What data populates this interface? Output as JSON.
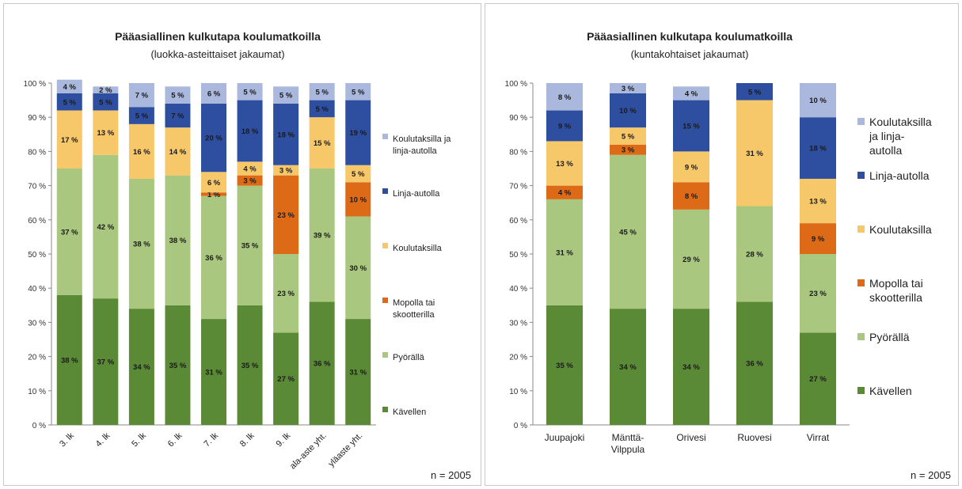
{
  "charts": [
    {
      "n_label": "n = 2005",
      "chart_data": {
        "type": "bar",
        "stacked": true,
        "title": "Pääasiallinen kulkutapa koulumatkoilla",
        "subtitle": "(luokka-asteittaiset jakaumat)",
        "xlabel": "",
        "ylabel": "",
        "ylim": [
          0,
          100
        ],
        "y_ticks": [
          "0 %",
          "10 %",
          "20 %",
          "30 %",
          "40 %",
          "50 %",
          "60 %",
          "70 %",
          "80 %",
          "90 %",
          "100 %"
        ],
        "grid": false,
        "legend_position": "right",
        "categories": [
          "3. lk",
          "4. lk",
          "5. lk",
          "6. lk",
          "7. lk",
          "8. lk",
          "9. lk",
          "ala-aste yht.",
          "yläaste yht."
        ],
        "series": [
          {
            "name": "Kävellen",
            "color": "#5b8a36",
            "values": [
              38,
              37,
              34,
              35,
              31,
              35,
              27,
              36,
              31
            ]
          },
          {
            "name": "Pyörällä",
            "color": "#a9c77e",
            "values": [
              37,
              42,
              38,
              38,
              36,
              35,
              23,
              39,
              30
            ]
          },
          {
            "name": "Mopolla tai skootterilla",
            "color": "#dc6a16",
            "values": [
              0,
              0,
              0,
              0,
              1,
              3,
              23,
              0,
              10
            ]
          },
          {
            "name": "Koulutaksilla",
            "color": "#f7c86a",
            "values": [
              17,
              13,
              16,
              14,
              6,
              4,
              3,
              15,
              5
            ]
          },
          {
            "name": "Linja-autolla",
            "color": "#2e4fa0",
            "values": [
              5,
              5,
              5,
              7,
              20,
              18,
              18,
              5,
              19
            ]
          },
          {
            "name": "Koulutaksilla ja linja-autolla",
            "color": "#a9b8dc",
            "values": [
              4,
              2,
              7,
              5,
              6,
              5,
              5,
              5,
              5
            ]
          }
        ],
        "data_labels": [
          [
            "38 %",
            "37 %",
            "",
            "17 %",
            "5 %",
            "4 %"
          ],
          [
            "37 %",
            "42 %",
            "",
            "13 %",
            "5 %",
            "2 %"
          ],
          [
            "34 %",
            "38 %",
            "",
            "16 %",
            "5 %",
            "7 %"
          ],
          [
            "35 %",
            "38 %",
            "",
            "14 %",
            "7 %",
            "5 %"
          ],
          [
            "31 %",
            "36 %",
            "1 %",
            "6 %",
            "20 %",
            "6 %"
          ],
          [
            "35 %",
            "35 %",
            "3 %",
            "4 %",
            "18 %",
            "5 %"
          ],
          [
            "27 %",
            "23 %",
            "23 %",
            "3 %",
            "18 %",
            "5 %"
          ],
          [
            "36 %",
            "39 %",
            "",
            "15 %",
            "5 %",
            "5 %"
          ],
          [
            "31 %",
            "30 %",
            "10 %",
            "5 %",
            "19 %",
            "5 %"
          ]
        ],
        "legend": [
          {
            "label_lines": [
              "Koulutaksilla ja",
              "linja-autolla"
            ],
            "color": "#a9b8dc"
          },
          {
            "label_lines": [
              "Linja-autolla"
            ],
            "color": "#2e4fa0"
          },
          {
            "label_lines": [
              "Koulutaksilla"
            ],
            "color": "#f7c86a"
          },
          {
            "label_lines": [
              "Mopolla tai",
              "skootterilla"
            ],
            "color": "#dc6a16"
          },
          {
            "label_lines": [
              "Pyörällä"
            ],
            "color": "#a9c77e"
          },
          {
            "label_lines": [
              "Kävellen"
            ],
            "color": "#5b8a36"
          }
        ]
      }
    },
    {
      "n_label": "n = 2005",
      "chart_data": {
        "type": "bar",
        "stacked": true,
        "title": "Pääasiallinen kulkutapa koulumatkoilla",
        "subtitle": "(kuntakohtaiset jakaumat)",
        "xlabel": "",
        "ylabel": "",
        "ylim": [
          0,
          100
        ],
        "y_ticks": [
          "0 %",
          "10 %",
          "20 %",
          "30 %",
          "40 %",
          "50 %",
          "60 %",
          "70 %",
          "80 %",
          "90 %",
          "100 %"
        ],
        "grid": false,
        "legend_position": "right",
        "categories": [
          "Juupajoki",
          "Mänttä-Vilppula",
          "Orivesi",
          "Ruovesi",
          "Virrat"
        ],
        "category_lines": [
          [
            "Juupajoki"
          ],
          [
            "Mänttä-",
            "Vilppula"
          ],
          [
            "Orivesi"
          ],
          [
            "Ruovesi"
          ],
          [
            "Virrat"
          ]
        ],
        "series": [
          {
            "name": "Kävellen",
            "color": "#5b8a36",
            "values": [
              35,
              34,
              34,
              36,
              27
            ]
          },
          {
            "name": "Pyörällä",
            "color": "#a9c77e",
            "values": [
              31,
              45,
              29,
              28,
              23
            ]
          },
          {
            "name": "Mopolla tai skootterilla",
            "color": "#dc6a16",
            "values": [
              4,
              3,
              8,
              0,
              9
            ]
          },
          {
            "name": "Koulutaksilla",
            "color": "#f7c86a",
            "values": [
              13,
              5,
              9,
              31,
              13
            ]
          },
          {
            "name": "Linja-autolla",
            "color": "#2e4fa0",
            "values": [
              9,
              10,
              15,
              5,
              18
            ]
          },
          {
            "name": "Koulutaksilla ja linja-autolla",
            "color": "#a9b8dc",
            "values": [
              8,
              3,
              4,
              0,
              10
            ]
          }
        ],
        "data_labels": [
          [
            "35 %",
            "31 %",
            "4 %",
            "13 %",
            "9 %",
            "8 %"
          ],
          [
            "34 %",
            "45 %",
            "3 %",
            "5 %",
            "10 %",
            "3 %"
          ],
          [
            "34 %",
            "29 %",
            "8 %",
            "9 %",
            "15 %",
            "4 %"
          ],
          [
            "36 %",
            "28 %",
            "",
            "31 %",
            "5 %",
            ""
          ],
          [
            "27 %",
            "23 %",
            "9 %",
            "13 %",
            "18 %",
            "10 %"
          ]
        ],
        "legend": [
          {
            "label_lines": [
              "Koulutaksilla",
              "ja linja-",
              "autolla"
            ],
            "color": "#a9b8dc"
          },
          {
            "label_lines": [
              "Linja-autolla"
            ],
            "color": "#2e4fa0"
          },
          {
            "label_lines": [
              "Koulutaksilla"
            ],
            "color": "#f7c86a"
          },
          {
            "label_lines": [
              "Mopolla tai",
              "skootterilla"
            ],
            "color": "#dc6a16"
          },
          {
            "label_lines": [
              "Pyörällä"
            ],
            "color": "#a9c77e"
          },
          {
            "label_lines": [
              "Kävellen"
            ],
            "color": "#5b8a36"
          }
        ]
      }
    }
  ]
}
